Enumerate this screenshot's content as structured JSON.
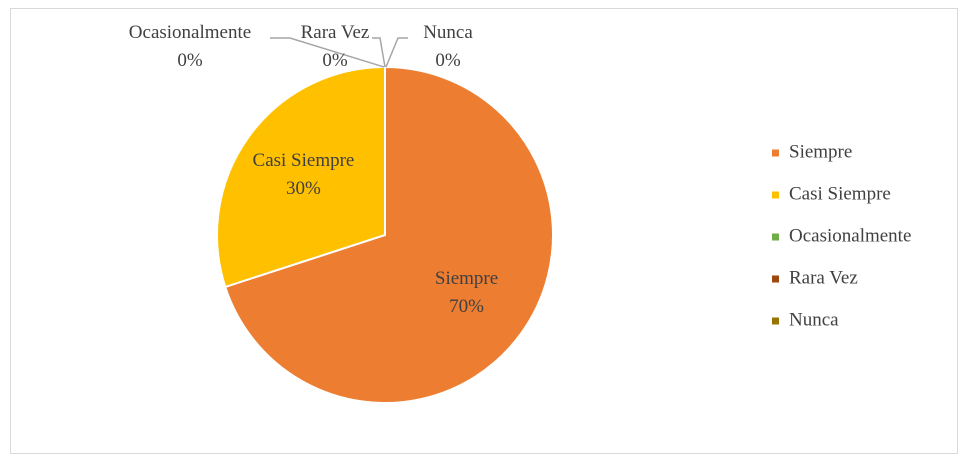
{
  "chart_data": {
    "type": "pie",
    "categories": [
      "Siempre",
      "Casi Siempre",
      "Ocasionalmente",
      "Rara Vez",
      "Nunca"
    ],
    "values": [
      70,
      30,
      0,
      0,
      0
    ],
    "value_labels": [
      "70%",
      "30%",
      "0%",
      "0%",
      "0%"
    ],
    "colors": [
      "#ED7D31",
      "#FFC000",
      "#70AD47",
      "#9E480E",
      "#997300"
    ],
    "legend": "right"
  }
}
